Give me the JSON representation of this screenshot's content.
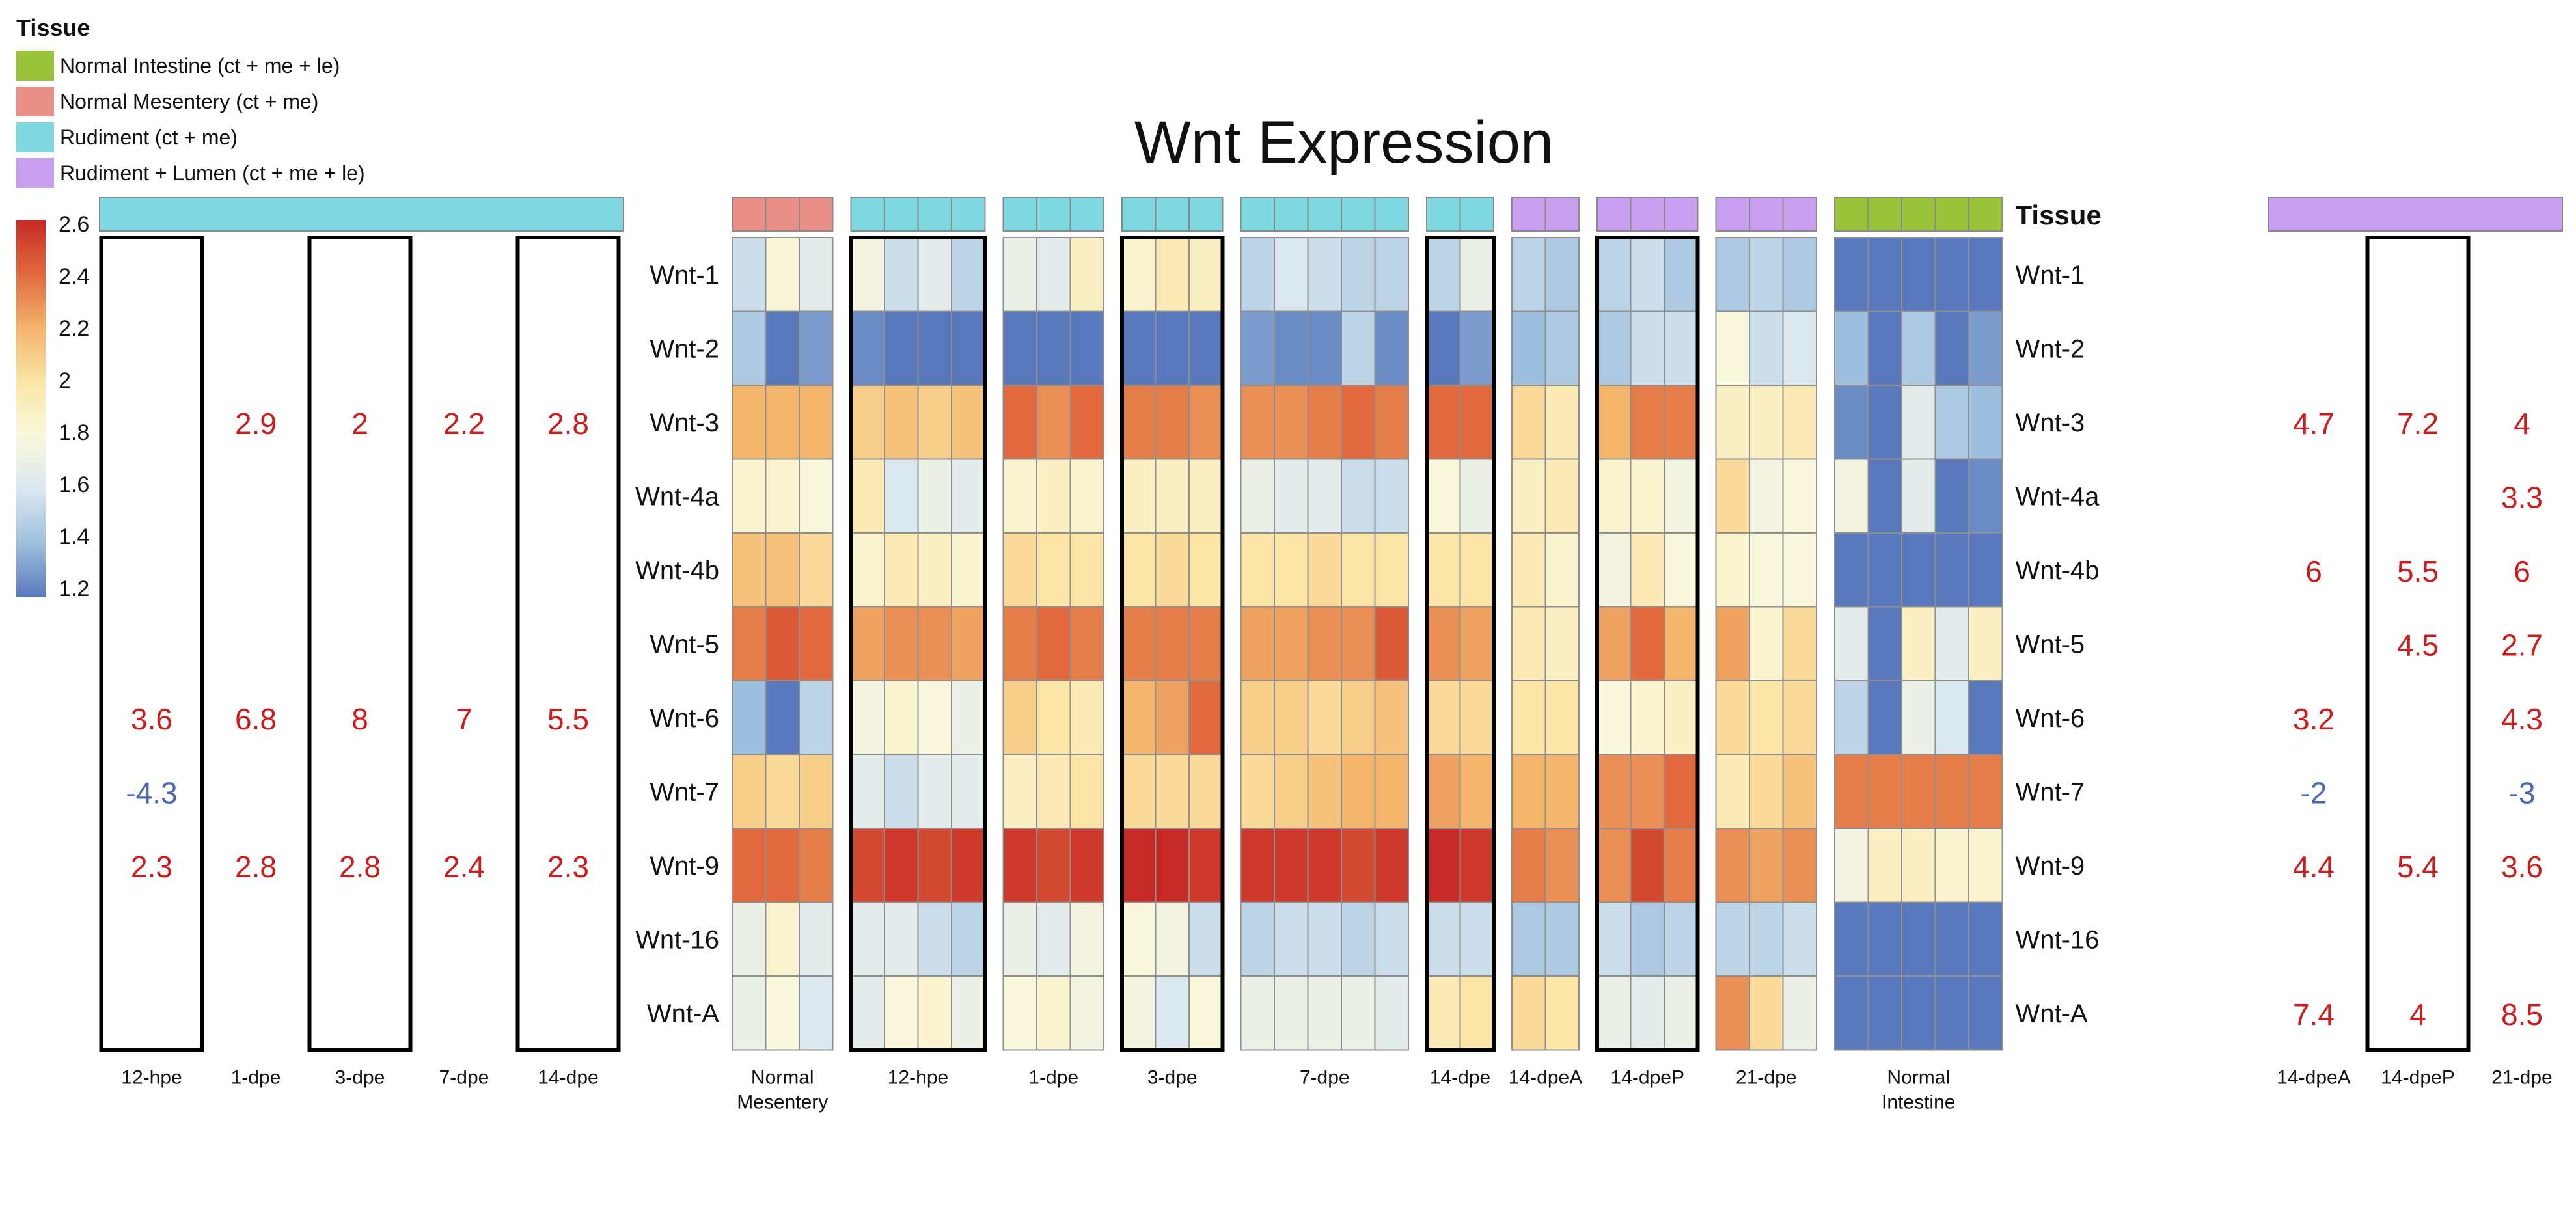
{
  "title": "Wnt Expression",
  "tissue_legend": {
    "title": "Tissue",
    "entries": [
      {
        "label": "Normal Intestine (ct + me + le)",
        "color": "#9bc33a"
      },
      {
        "label": "Normal Mesentery (ct + me)",
        "color": "#e89087"
      },
      {
        "label": "Rudiment (ct + me)",
        "color": "#7fd7e0"
      },
      {
        "label": "Rudiment + Lumen (ct + me + le)",
        "color": "#c9a0f0"
      }
    ]
  },
  "colorscale": {
    "ticks": [
      "2.6",
      "2.4",
      "2.2",
      "2",
      "1.8",
      "1.6",
      "1.4",
      "1.2"
    ],
    "colors": [
      "#c62a26",
      "#e06a3e",
      "#f3b46c",
      "#fbe6a8",
      "#f9f7dc",
      "#dbe8f0",
      "#9ebfdd",
      "#5a79bd"
    ]
  },
  "tissue_row_label": "Tissue",
  "chart_data": {
    "type": "heatmap",
    "title": "Wnt Expression",
    "genes": [
      "Wnt-1",
      "Wnt-2",
      "Wnt-3",
      "Wnt-4a",
      "Wnt-4b",
      "Wnt-5",
      "Wnt-6",
      "Wnt-7",
      "Wnt-9",
      "Wnt-16",
      "Wnt-A"
    ],
    "colorscale_range": [
      1.2,
      2.6
    ],
    "groups": [
      {
        "label": "Normal Mesentery",
        "tissue": "Normal Mesentery (ct + me)",
        "boxed": false,
        "values": [
          [
            1.55,
            1.82,
            1.65
          ],
          [
            1.45,
            1.2,
            1.3
          ],
          [
            2.2,
            2.2,
            2.2
          ],
          [
            1.85,
            1.85,
            1.8
          ],
          [
            2.15,
            2.15,
            2.05
          ],
          [
            2.35,
            2.45,
            2.4
          ],
          [
            1.4,
            1.2,
            1.5
          ],
          [
            2.1,
            2.05,
            2.1
          ],
          [
            2.4,
            2.4,
            2.35
          ],
          [
            1.7,
            1.85,
            1.65
          ],
          [
            1.7,
            1.8,
            1.6
          ]
        ]
      },
      {
        "label": "12-hpe",
        "tissue": "Rudiment (ct + me)",
        "boxed": true,
        "values": [
          [
            1.75,
            1.55,
            1.65,
            1.5
          ],
          [
            1.25,
            1.2,
            1.2,
            1.2
          ],
          [
            2.1,
            2.15,
            2.1,
            2.15
          ],
          [
            1.95,
            1.6,
            1.7,
            1.65
          ],
          [
            1.85,
            1.95,
            1.9,
            1.85
          ],
          [
            2.25,
            2.3,
            2.3,
            2.25
          ],
          [
            1.75,
            1.85,
            1.8,
            1.7
          ],
          [
            1.65,
            1.55,
            1.65,
            1.65
          ],
          [
            2.5,
            2.55,
            2.5,
            2.55
          ],
          [
            1.65,
            1.65,
            1.55,
            1.5
          ],
          [
            1.65,
            1.8,
            1.85,
            1.7
          ]
        ]
      },
      {
        "label": "1-dpe",
        "tissue": "Rudiment (ct + me)",
        "boxed": false,
        "values": [
          [
            1.7,
            1.65,
            1.9
          ],
          [
            1.2,
            1.2,
            1.2
          ],
          [
            2.4,
            2.3,
            2.4
          ],
          [
            1.85,
            1.9,
            1.85
          ],
          [
            2.05,
            2.0,
            2.0
          ],
          [
            2.35,
            2.4,
            2.35
          ],
          [
            2.1,
            2.0,
            1.95
          ],
          [
            1.9,
            1.95,
            2.0
          ],
          [
            2.55,
            2.5,
            2.55
          ],
          [
            1.7,
            1.65,
            1.75
          ],
          [
            1.8,
            1.85,
            1.75
          ]
        ]
      },
      {
        "label": "3-dpe",
        "tissue": "Rudiment (ct + me)",
        "boxed": true,
        "values": [
          [
            1.85,
            1.95,
            1.9
          ],
          [
            1.2,
            1.2,
            1.2
          ],
          [
            2.35,
            2.35,
            2.3
          ],
          [
            1.9,
            1.9,
            1.9
          ],
          [
            2.0,
            2.05,
            2.0
          ],
          [
            2.35,
            2.35,
            2.35
          ],
          [
            2.2,
            2.25,
            2.4
          ],
          [
            2.05,
            2.05,
            2.05
          ],
          [
            2.6,
            2.6,
            2.55
          ],
          [
            1.8,
            1.75,
            1.55
          ],
          [
            1.75,
            1.6,
            1.8
          ]
        ]
      },
      {
        "label": "7-dpe",
        "tissue": "Rudiment (ct + me)",
        "boxed": false,
        "values": [
          [
            1.5,
            1.6,
            1.55,
            1.5,
            1.5
          ],
          [
            1.3,
            1.25,
            1.25,
            1.5,
            1.25
          ],
          [
            2.3,
            2.3,
            2.35,
            2.4,
            2.35
          ],
          [
            1.7,
            1.65,
            1.65,
            1.55,
            1.55
          ],
          [
            2.0,
            2.0,
            2.05,
            2.0,
            2.0
          ],
          [
            2.25,
            2.25,
            2.3,
            2.3,
            2.45
          ],
          [
            2.1,
            2.1,
            2.05,
            2.1,
            2.15
          ],
          [
            2.05,
            2.1,
            2.15,
            2.2,
            2.2
          ],
          [
            2.55,
            2.55,
            2.55,
            2.5,
            2.55
          ],
          [
            1.5,
            1.55,
            1.55,
            1.5,
            1.55
          ],
          [
            1.7,
            1.7,
            1.7,
            1.7,
            1.65
          ]
        ]
      },
      {
        "label": "14-dpe",
        "tissue": "Rudiment (ct + me)",
        "boxed": true,
        "values": [
          [
            1.5,
            1.7
          ],
          [
            1.2,
            1.3
          ],
          [
            2.4,
            2.4
          ],
          [
            1.8,
            1.7
          ],
          [
            2.0,
            2.0
          ],
          [
            2.3,
            2.25
          ],
          [
            2.05,
            2.05
          ],
          [
            2.25,
            2.2
          ],
          [
            2.6,
            2.55
          ],
          [
            1.55,
            1.55
          ],
          [
            1.95,
            2.0
          ]
        ]
      },
      {
        "label": "14-dpeA",
        "tissue": "Rudiment + Lumen (ct + me + le)",
        "boxed": false,
        "values": [
          [
            1.5,
            1.45
          ],
          [
            1.4,
            1.45
          ],
          [
            2.05,
            1.95
          ],
          [
            1.9,
            1.95
          ],
          [
            1.95,
            1.85
          ],
          [
            1.95,
            1.9
          ],
          [
            2.0,
            2.0
          ],
          [
            2.2,
            2.2
          ],
          [
            2.35,
            2.3
          ],
          [
            1.45,
            1.45
          ],
          [
            2.05,
            2.0
          ]
        ]
      },
      {
        "label": "14-dpeP",
        "tissue": "Rudiment + Lumen (ct + me + le)",
        "boxed": true,
        "values": [
          [
            1.5,
            1.55,
            1.45
          ],
          [
            1.45,
            1.55,
            1.55
          ],
          [
            2.2,
            2.35,
            2.35
          ],
          [
            1.85,
            1.85,
            1.75
          ],
          [
            1.75,
            1.95,
            1.8
          ],
          [
            2.25,
            2.4,
            2.2
          ],
          [
            1.8,
            1.85,
            1.9
          ],
          [
            2.3,
            2.3,
            2.4
          ],
          [
            2.3,
            2.5,
            2.35
          ],
          [
            1.55,
            1.45,
            1.5
          ],
          [
            1.7,
            1.65,
            1.7
          ]
        ]
      },
      {
        "label": "21-dpe",
        "tissue": "Rudiment + Lumen (ct + me + le)",
        "boxed": false,
        "values": [
          [
            1.45,
            1.5,
            1.45
          ],
          [
            1.8,
            1.55,
            1.6
          ],
          [
            1.9,
            1.9,
            1.95
          ],
          [
            2.05,
            1.75,
            1.8
          ],
          [
            1.85,
            1.8,
            1.8
          ],
          [
            2.25,
            1.85,
            2.05
          ],
          [
            2.05,
            2.0,
            2.05
          ],
          [
            1.95,
            2.05,
            2.15
          ],
          [
            2.3,
            2.25,
            2.3
          ],
          [
            1.5,
            1.5,
            1.55
          ],
          [
            2.3,
            2.05,
            1.7
          ]
        ]
      },
      {
        "label": "Normal Intestine",
        "tissue": "Normal Intestine (ct + me + le)",
        "boxed": false,
        "values": [
          [
            1.2,
            1.2,
            1.2,
            1.2,
            1.2
          ],
          [
            1.4,
            1.2,
            1.45,
            1.2,
            1.3
          ],
          [
            1.25,
            1.2,
            1.65,
            1.45,
            1.4
          ],
          [
            1.75,
            1.2,
            1.65,
            1.2,
            1.25
          ],
          [
            1.2,
            1.2,
            1.2,
            1.2,
            1.2
          ],
          [
            1.65,
            1.2,
            1.9,
            1.65,
            1.9
          ],
          [
            1.5,
            1.2,
            1.7,
            1.6,
            1.2
          ],
          [
            2.35,
            2.35,
            2.35,
            2.35,
            2.35
          ],
          [
            1.75,
            1.9,
            1.9,
            1.85,
            1.85
          ],
          [
            1.2,
            1.2,
            1.2,
            1.2,
            1.2
          ],
          [
            1.2,
            1.2,
            1.2,
            1.2,
            1.2
          ]
        ]
      }
    ],
    "left_fold_changes": {
      "tissue": "Rudiment (ct + me)",
      "columns": [
        {
          "label": "12-hpe",
          "boxed": true,
          "values": [
            "",
            "",
            "",
            "",
            "",
            "",
            "3.6",
            "-4.3",
            "2.3",
            "",
            ""
          ]
        },
        {
          "label": "1-dpe",
          "boxed": false,
          "values": [
            "",
            "",
            "2.9",
            "",
            "",
            "",
            "6.8",
            "",
            "2.8",
            "",
            ""
          ]
        },
        {
          "label": "3-dpe",
          "boxed": true,
          "values": [
            "",
            "",
            "2",
            "",
            "",
            "",
            "8",
            "",
            "2.8",
            "",
            ""
          ]
        },
        {
          "label": "7-dpe",
          "boxed": false,
          "values": [
            "",
            "",
            "2.2",
            "",
            "",
            "",
            "7",
            "",
            "2.4",
            "",
            ""
          ]
        },
        {
          "label": "14-dpe",
          "boxed": true,
          "values": [
            "",
            "",
            "2.8",
            "",
            "",
            "",
            "5.5",
            "",
            "2.3",
            "",
            ""
          ]
        }
      ]
    },
    "right_fold_changes": {
      "tissue": "Rudiment + Lumen (ct + me + le)",
      "columns": [
        {
          "label": "14-dpeA",
          "boxed": false,
          "values": [
            "",
            "",
            "4.7",
            "",
            "6",
            "",
            "3.2",
            "-2",
            "4.4",
            "",
            "7.4"
          ]
        },
        {
          "label": "14-dpeP",
          "boxed": true,
          "values": [
            "",
            "",
            "7.2",
            "",
            "5.5",
            "4.5",
            "",
            "",
            "5.4",
            "",
            "4"
          ]
        },
        {
          "label": "21-dpe",
          "boxed": false,
          "values": [
            "",
            "",
            "4",
            "3.3",
            "6",
            "2.7",
            "4.3",
            "-3",
            "3.6",
            "",
            "8.5"
          ]
        }
      ]
    }
  }
}
